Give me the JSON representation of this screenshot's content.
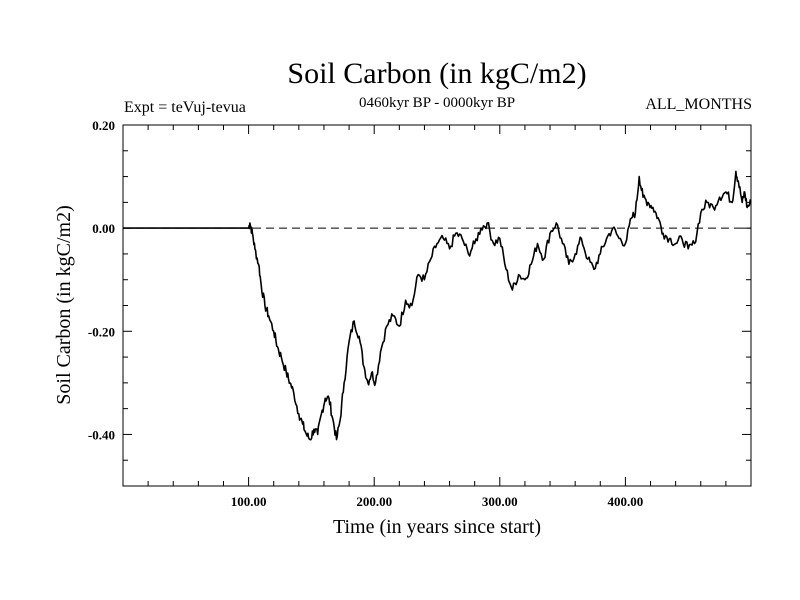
{
  "chart_data": {
    "type": "line",
    "title": "Soil Carbon (in kgC/m2)",
    "subtitle": "0460kyr BP - 0000kyr BP",
    "left_label": "Expt = teVuj-tevua",
    "right_label": "ALL_MONTHS",
    "xlabel": "Time (in years since start)",
    "ylabel": "Soil Carbon (in kgC/m2)",
    "xlim": [
      0,
      500
    ],
    "ylim": [
      -0.5,
      0.2
    ],
    "x_ticks": [
      100,
      200,
      300,
      400
    ],
    "x_tick_labels": [
      "100.00",
      "200.00",
      "300.00",
      "400.00"
    ],
    "y_ticks": [
      0.2,
      0.0,
      -0.2,
      -0.4
    ],
    "y_tick_labels": [
      "0.20",
      "0.00",
      "-0.20",
      "-0.40"
    ],
    "zero_line": "dashed",
    "series": [
      {
        "name": "Soil Carbon",
        "x": [
          0,
          100,
          101,
          103,
          105,
          108,
          110,
          113,
          116,
          120,
          123,
          126,
          130,
          133,
          136,
          140,
          143,
          146,
          149,
          152,
          155,
          158,
          161,
          164,
          167,
          170,
          173,
          176,
          180,
          184,
          188,
          192,
          195,
          198,
          201,
          205,
          210,
          215,
          220,
          225,
          230,
          235,
          240,
          245,
          250,
          255,
          260,
          265,
          270,
          275,
          280,
          285,
          290,
          295,
          300,
          305,
          310,
          315,
          320,
          325,
          330,
          335,
          340,
          345,
          350,
          355,
          360,
          365,
          370,
          375,
          380,
          385,
          390,
          395,
          400,
          405,
          408,
          411,
          414,
          418,
          422,
          426,
          430,
          435,
          440,
          445,
          450,
          455,
          460,
          465,
          470,
          475,
          480,
          485,
          488,
          490,
          493,
          495,
          497,
          500
        ],
        "values": [
          0.0,
          0.0,
          0.01,
          -0.01,
          -0.04,
          -0.07,
          -0.11,
          -0.15,
          -0.17,
          -0.2,
          -0.23,
          -0.25,
          -0.28,
          -0.3,
          -0.32,
          -0.36,
          -0.38,
          -0.4,
          -0.41,
          -0.39,
          -0.4,
          -0.36,
          -0.33,
          -0.33,
          -0.37,
          -0.41,
          -0.37,
          -0.3,
          -0.22,
          -0.18,
          -0.21,
          -0.27,
          -0.3,
          -0.28,
          -0.3,
          -0.24,
          -0.19,
          -0.17,
          -0.19,
          -0.14,
          -0.15,
          -0.09,
          -0.1,
          -0.06,
          -0.03,
          -0.02,
          -0.04,
          -0.01,
          -0.02,
          -0.05,
          -0.03,
          0.0,
          0.01,
          -0.03,
          -0.02,
          -0.08,
          -0.12,
          -0.09,
          -0.1,
          -0.07,
          -0.03,
          -0.06,
          -0.01,
          0.01,
          -0.03,
          -0.07,
          -0.05,
          -0.02,
          -0.06,
          -0.08,
          -0.05,
          -0.02,
          0.0,
          -0.02,
          -0.03,
          0.02,
          0.03,
          0.1,
          0.06,
          0.05,
          0.04,
          0.02,
          -0.01,
          -0.02,
          -0.03,
          -0.02,
          -0.04,
          -0.03,
          0.03,
          0.05,
          0.04,
          0.06,
          0.07,
          0.05,
          0.11,
          0.09,
          0.05,
          0.07,
          0.04,
          0.05
        ]
      }
    ]
  }
}
